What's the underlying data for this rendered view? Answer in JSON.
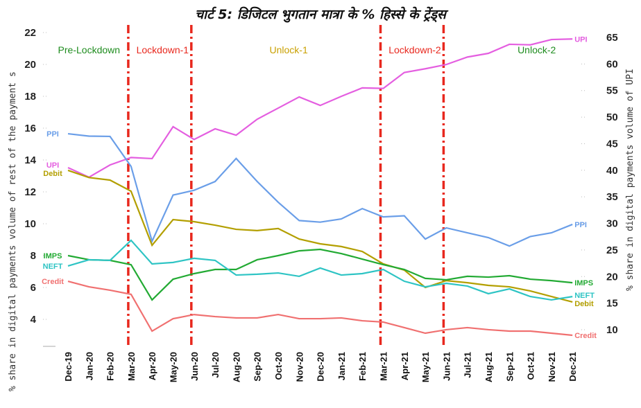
{
  "chart_data": {
    "type": "line",
    "title": "चार्ट 5: डिजिटल भुगतान मात्रा के % हिस्से के ट्रेंड्स",
    "ylabel_left": "% share in digital payments volume of rest of the payment s",
    "ylabel_right": "% share in digital payments volume of UPI",
    "ylim_left": [
      3,
      22.5
    ],
    "ylim_right": [
      8,
      66
    ],
    "yticks_left": [
      4,
      6,
      8,
      10,
      12,
      14,
      16,
      18,
      20,
      22
    ],
    "yticks_right": [
      10,
      15,
      20,
      25,
      30,
      35,
      40,
      45,
      50,
      55,
      60,
      65
    ],
    "grid": "horizontal dotted",
    "categories": [
      "Dec-19",
      "Jan-20",
      "Feb-20",
      "Mar-20",
      "Apr-20",
      "May-20",
      "Jun-20",
      "Jul-20",
      "Aug-20",
      "Sep-20",
      "Oct-20",
      "Nov-20",
      "Dec-20",
      "Jan-21",
      "Feb-21",
      "Mar-21",
      "Apr-21",
      "May-21",
      "Jun-21",
      "Jul-21",
      "Aug-21",
      "Sep-21",
      "Oct-21",
      "Nov-21",
      "Dec-21"
    ],
    "phase_markers": [
      "Mar-20",
      "Jun-20",
      "Mar-21",
      "Jun-21"
    ],
    "phases": [
      {
        "label": "Pre-Lockdown",
        "color": "#1e8c1e",
        "at": 1
      },
      {
        "label": "Lockdown-1",
        "color": "#e8281e",
        "at": 4.5
      },
      {
        "label": "Unlock-1",
        "color": "#c9a000",
        "at": 10.5
      },
      {
        "label": "Lockdown-2",
        "color": "#e8281e",
        "at": 16.5
      },
      {
        "label": "Unlock-2",
        "color": "#1e8c1e",
        "at": 22.3
      }
    ],
    "series": [
      {
        "name": "UPI",
        "axis": "right",
        "color": "#e45ee0",
        "values": [
          40.5,
          38.7,
          41,
          42.4,
          42.2,
          48.2,
          45.8,
          47.8,
          46.6,
          49.6,
          51.7,
          53.8,
          52.2,
          53.9,
          55.5,
          55.4,
          58.4,
          59.1,
          59.9,
          61.3,
          62,
          63.7,
          63.6,
          64.6,
          64.7
        ]
      },
      {
        "name": "PPI",
        "axis": "left",
        "color": "#6a9ee8",
        "values": [
          15.65,
          15.5,
          15.48,
          13.6,
          8.9,
          11.8,
          12.1,
          12.65,
          14.1,
          12.65,
          11.35,
          10.2,
          10.1,
          10.3,
          10.95,
          10.43,
          10.5,
          9.04,
          9.74,
          9.43,
          9.13,
          8.6,
          9.2,
          9.43,
          9.96
        ]
      },
      {
        "name": "Debit",
        "axis": "left",
        "color": "#b39f00",
        "values": [
          13.35,
          12.9,
          12.74,
          12.04,
          8.65,
          10.26,
          10.13,
          9.91,
          9.65,
          9.57,
          9.7,
          9.04,
          8.74,
          8.57,
          8.26,
          7.48,
          7.09,
          6.0,
          6.43,
          6.3,
          6.13,
          6.04,
          5.78,
          5.43,
          5.09
        ]
      },
      {
        "name": "IMPS",
        "axis": "left",
        "color": "#22aa33",
        "values": [
          8.0,
          7.74,
          7.7,
          7.43,
          5.22,
          6.52,
          6.87,
          7.13,
          7.13,
          7.74,
          8.0,
          8.3,
          8.39,
          8.13,
          7.78,
          7.43,
          7.13,
          6.57,
          6.48,
          6.7,
          6.65,
          6.74,
          6.52,
          6.43,
          6.3
        ]
      },
      {
        "name": "NEFT",
        "axis": "left",
        "color": "#2ec4c4",
        "values": [
          7.35,
          7.74,
          7.7,
          8.96,
          7.48,
          7.57,
          7.83,
          7.7,
          6.78,
          6.83,
          6.91,
          6.7,
          7.22,
          6.78,
          6.87,
          7.13,
          6.39,
          6.04,
          6.26,
          6.09,
          5.61,
          5.91,
          5.43,
          5.22,
          5.43
        ]
      },
      {
        "name": "Credit",
        "axis": "left",
        "color": "#f07070",
        "values": [
          6.39,
          6.04,
          5.83,
          5.57,
          3.26,
          4.04,
          4.3,
          4.17,
          4.09,
          4.09,
          4.3,
          4.04,
          4.04,
          4.09,
          3.91,
          3.83,
          3.48,
          3.13,
          3.35,
          3.48,
          3.35,
          3.26,
          3.26,
          3.13,
          3.0
        ]
      }
    ]
  }
}
